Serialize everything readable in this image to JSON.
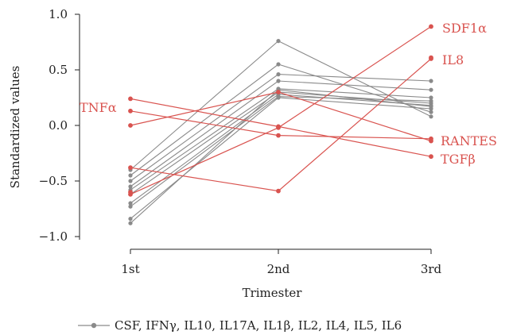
{
  "chart_data": {
    "type": "line",
    "xlabel": "Trimester",
    "ylabel": "Standardized values",
    "categories": [
      "1st",
      "2nd",
      "3rd"
    ],
    "ylim": [
      -1.0,
      1.0
    ],
    "yticks": [
      -1.0,
      -0.5,
      0.0,
      0.5,
      1.0
    ],
    "ytick_labels": [
      "−1.0",
      "−0.5",
      "0.0",
      "0.5",
      "1.0"
    ],
    "grid": false,
    "colors": {
      "gray": "#8a8a8a",
      "red": "#d9534f"
    },
    "gray_series": [
      {
        "values": [
          -0.4,
          0.76,
          0.08
        ]
      },
      {
        "values": [
          -0.45,
          0.55,
          0.12
        ]
      },
      {
        "values": [
          -0.5,
          0.46,
          0.4
        ]
      },
      {
        "values": [
          -0.55,
          0.4,
          0.32
        ]
      },
      {
        "values": [
          -0.58,
          0.33,
          0.25
        ]
      },
      {
        "values": [
          -0.62,
          0.3,
          0.2
        ]
      },
      {
        "values": [
          -0.7,
          0.28,
          0.18
        ]
      },
      {
        "values": [
          -0.73,
          0.26,
          0.22
        ]
      },
      {
        "values": [
          -0.84,
          0.25,
          0.15
        ]
      },
      {
        "values": [
          -0.88,
          0.32,
          0.17
        ]
      }
    ],
    "red_series": [
      {
        "name": "SDF1α",
        "values": [
          -0.62,
          -0.02,
          0.89
        ]
      },
      {
        "name": "IL8",
        "values": [
          -0.38,
          -0.59,
          0.6
        ]
      },
      {
        "name": "TNFα",
        "values": [
          0.0,
          0.3,
          -0.14
        ]
      },
      {
        "name": "RANTES",
        "values": [
          0.13,
          -0.09,
          -0.12
        ]
      },
      {
        "name": "TGFβ",
        "values": [
          0.24,
          -0.01,
          -0.28
        ]
      }
    ],
    "extra_red_points": [
      {
        "x": 0,
        "y": -0.6
      },
      {
        "x": 2,
        "y": 0.61
      }
    ],
    "red_labels": {
      "TNFα": "TNFα",
      "SDF1α": "SDF1α",
      "IL8": "IL8",
      "RANTES": "RANTES",
      "TGFβ": "TGFβ"
    },
    "legend": {
      "position": "bottom",
      "text": "CSF, IFNγ, IL10, IL17A, IL1β, IL2, IL4, IL5, IL6"
    }
  }
}
